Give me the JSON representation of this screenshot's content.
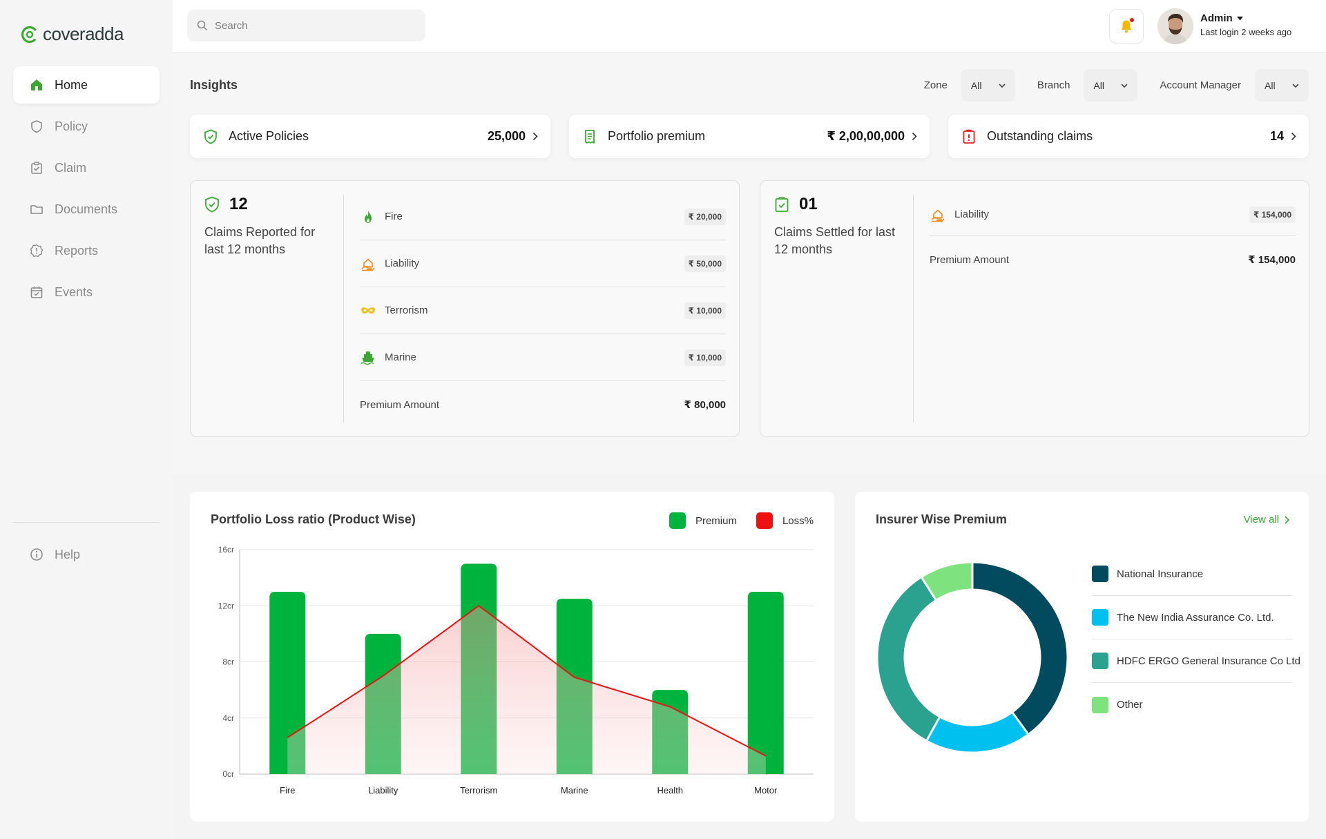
{
  "app": {
    "logo_text": "coveradda"
  },
  "sidebar": {
    "items": [
      {
        "label": "Home"
      },
      {
        "label": "Policy"
      },
      {
        "label": "Claim"
      },
      {
        "label": "Documents"
      },
      {
        "label": "Reports"
      },
      {
        "label": "Events"
      }
    ],
    "help_label": "Help"
  },
  "header": {
    "search_placeholder": "Search",
    "user_name": "Admin",
    "last_login": "Last login 2 weeks ago"
  },
  "insights": {
    "title": "Insights",
    "filters": [
      {
        "label": "Zone",
        "value": "All"
      },
      {
        "label": "Branch",
        "value": "All"
      },
      {
        "label": "Account Manager",
        "value": "All"
      }
    ],
    "stats": [
      {
        "label": "Active Policies",
        "value": "25,000",
        "icon": "shield-check-icon"
      },
      {
        "label": "Portfolio premium",
        "value": "₹ 2,00,00,000",
        "icon": "receipt-icon"
      },
      {
        "label": "Outstanding claims",
        "value": "14",
        "icon": "alert-clipboard-icon"
      }
    ]
  },
  "claims_reported": {
    "count": "12",
    "description": "Claims Reported for last 12 months",
    "rows": [
      {
        "name": "Fire",
        "amount": "₹ 20,000",
        "icon": "fire-icon"
      },
      {
        "name": "Liability",
        "amount": "₹ 50,000",
        "icon": "hand-house-icon"
      },
      {
        "name": "Terrorism",
        "amount": "₹ 10,000",
        "icon": "mask-icon"
      },
      {
        "name": "Marine",
        "amount": "₹ 10,000",
        "icon": "ship-icon"
      }
    ],
    "total_label": "Premium Amount",
    "total_value": "₹ 80,000"
  },
  "claims_settled": {
    "count": "01",
    "description": "Claims Settled for last 12 months",
    "rows": [
      {
        "name": "Liability",
        "amount": "₹ 154,000",
        "icon": "hand-house-icon"
      }
    ],
    "total_label": "Premium Amount",
    "total_value": "₹ 154,000"
  },
  "loss_chart": {
    "title": "Portfolio Loss ratio (Product Wise)",
    "legend": [
      {
        "name": "Premium",
        "color": "#00b33c"
      },
      {
        "name": "Loss%",
        "color": "#ee1111"
      }
    ]
  },
  "chart_data": {
    "type": "bar",
    "title": "Portfolio Loss ratio (Product Wise)",
    "categories": [
      "Fire",
      "Liability",
      "Terrorism",
      "Marine",
      "Health",
      "Motor"
    ],
    "series": [
      {
        "name": "Premium",
        "type": "bar",
        "values": [
          13,
          10,
          15,
          12.5,
          6,
          13
        ],
        "color": "#00b33c"
      },
      {
        "name": "Loss%",
        "type": "line",
        "values": [
          2.6,
          7,
          12,
          6.9,
          4.8,
          1.3
        ],
        "color": "#ee1111"
      }
    ],
    "y_ticks": [
      "0cr",
      "4cr",
      "8cr",
      "12cr",
      "16cr"
    ],
    "ylim": [
      0,
      16
    ],
    "grid": true,
    "legend_position": "top-right"
  },
  "insurer_chart": {
    "title": "Insurer Wise Premium",
    "view_all": "View all",
    "items": [
      {
        "name": "National Insurance",
        "color": "#024a5e",
        "share": 40
      },
      {
        "name": "The New India Assurance Co. Ltd.",
        "color": "#00c0f0",
        "share": 18
      },
      {
        "name": "HDFC ERGO General Insurance Co Ltd",
        "color": "#2aa28f",
        "share": 33
      },
      {
        "name": "Other",
        "color": "#7ee37e",
        "share": 9
      }
    ]
  }
}
